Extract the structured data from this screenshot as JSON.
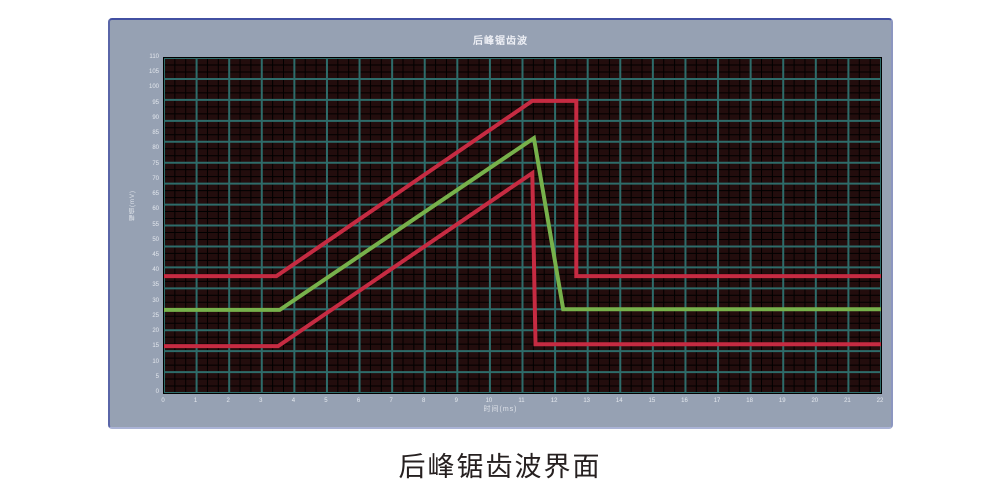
{
  "panel": {
    "title": "后峰锯齿波"
  },
  "caption": {
    "text": "后峰锯齿波界面"
  },
  "colors": {
    "panel_bg": "#96a1b3",
    "panel_border_dark": "#4250a2",
    "plot_bg": "#230d0d",
    "grid_major": "#2e6c6a",
    "grid_minor": "#000000",
    "red_line": "#c62b42",
    "green_line": "#77b14b",
    "tick_text": "#e4e8ee"
  },
  "chart_data": {
    "type": "line",
    "title": "后峰锯齿波",
    "xlabel": "时间(ms)",
    "ylabel": "幅值(mV)",
    "xlim": [
      0,
      22
    ],
    "ylim": [
      0,
      110
    ],
    "x_ticks": [
      0,
      1,
      2,
      3,
      4,
      5,
      6,
      7,
      8,
      9,
      10,
      11,
      12,
      13,
      14,
      15,
      16,
      17,
      18,
      19,
      20,
      21,
      22
    ],
    "y_ticks": [
      110,
      105,
      100,
      95,
      90,
      85,
      80,
      75,
      70,
      65,
      60,
      55,
      50,
      45,
      40,
      35,
      30,
      25,
      20,
      15,
      10,
      5,
      0
    ],
    "grid": {
      "x_major_divisions": 22,
      "y_major_divisions": 16,
      "minor_per_major": 3
    },
    "legend": "none",
    "series": [
      {
        "name": "upper-limit-red",
        "color": "#c62b42",
        "points": [
          [
            0,
            38.4
          ],
          [
            3.45,
            38.4
          ],
          [
            11.3,
            95.9
          ],
          [
            12.65,
            95.9
          ],
          [
            12.65,
            38.4
          ],
          [
            22,
            38.4
          ]
        ]
      },
      {
        "name": "sawtooth-green",
        "color": "#77b14b",
        "points": [
          [
            0,
            27.3
          ],
          [
            3.55,
            27.3
          ],
          [
            11.35,
            83.7
          ],
          [
            12.25,
            27.5
          ],
          [
            22,
            27.5
          ]
        ]
      },
      {
        "name": "lower-limit-red",
        "color": "#c62b42",
        "points": [
          [
            0,
            15.4
          ],
          [
            3.5,
            15.4
          ],
          [
            11.3,
            72.2
          ],
          [
            11.4,
            16.0
          ],
          [
            22,
            16.0
          ]
        ]
      }
    ]
  }
}
